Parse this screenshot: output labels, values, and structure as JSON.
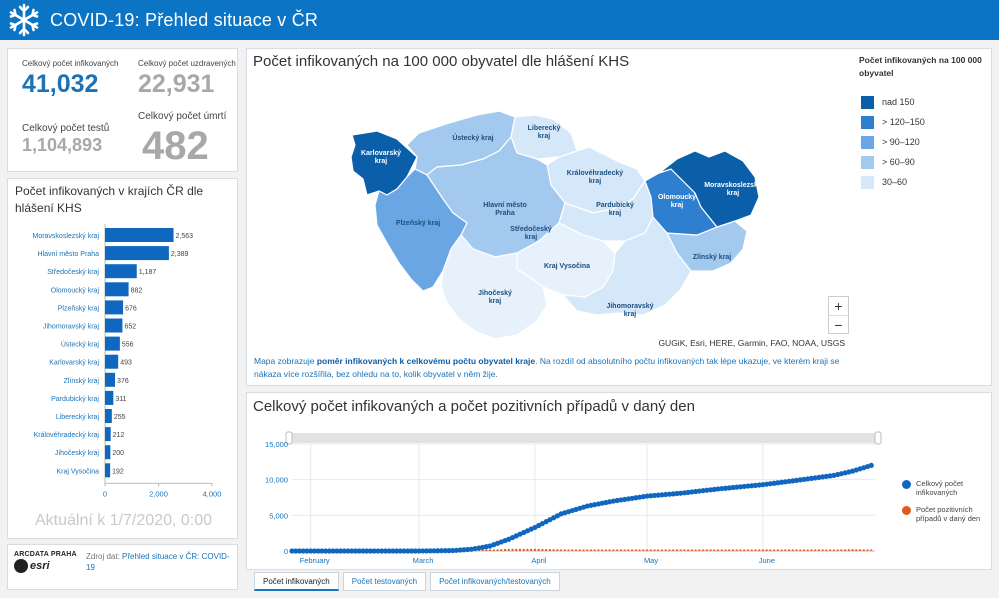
{
  "header": {
    "title": "COVID-19: Přehled situace v ČR"
  },
  "stats": [
    {
      "label": "Celkový počet infikovaných",
      "value": "41,032"
    },
    {
      "label": "Celkový počet uzdravených",
      "value": "22,931"
    },
    {
      "label": "Celkový počet testů",
      "value": "1,104,893"
    },
    {
      "label": "Celkový počet úmrtí",
      "value": "482"
    }
  ],
  "bar_panel": {
    "title": "Počet infikovaných v krajích ČR dle hlášení KHS",
    "updated": "Aktuální k 1/7/2020, 0:00"
  },
  "source": {
    "logo_text": "ARCDATA PRAHA",
    "logo_word": "esri",
    "prefix": "Zdroj dat: ",
    "link": "Přehled situace v ČR: COVID-19"
  },
  "map_panel": {
    "title": "Počet infikovaných na 100 000 obyvatel dle hlášení KHS",
    "legend_title": "Počet infikovaných na 100 000 obyvatel",
    "legend": [
      {
        "label": "nad 150",
        "color": "#0b5ea8"
      },
      {
        "label": "> 120–150",
        "color": "#2f7fd0"
      },
      {
        "label": "> 90–120",
        "color": "#6aa6e3"
      },
      {
        "label": "> 60–90",
        "color": "#a3c9ef"
      },
      {
        "label": "30–60",
        "color": "#d5e8f9"
      }
    ],
    "zoom_in": "+",
    "zoom_out": "−",
    "attribution": "GUGiK, Esri, HERE, Garmin, FAO, NOAA, USGS",
    "description": {
      "part1": "Mapa zobrazuje ",
      "bold": "poměr infikovaných k celkovému počtu obyvatel kraje",
      "part2": ". Na rozdíl od absolutního počtu infikovaných tak lépe ukazuje, ve kterém kraji se nákaza více rozšířila, bez ohledu na to, kolik obyvatel v něm žije."
    },
    "regions": [
      {
        "name": "Karlovarský kraj",
        "short": "Karlovarský\nkraj",
        "color": "#0b5ea8",
        "label_color": "#ffffff"
      },
      {
        "name": "Ústecký kraj",
        "short": "Ústecký kraj",
        "color": "#a3c9ef",
        "label_color": "#1d4f7e"
      },
      {
        "name": "Liberecký kraj",
        "short": "Liberecký\nkraj",
        "color": "#d5e8f9",
        "label_color": "#1d4f7e"
      },
      {
        "name": "Královéhradecký kraj",
        "short": "Královéhradecký\nkraj",
        "color": "#d5e8f9",
        "label_color": "#1d4f7e"
      },
      {
        "name": "Hlavní město Praha",
        "short": "Hlavní město\nPraha",
        "color": "#0b5ea8",
        "label_color": "#1d4f7e"
      },
      {
        "name": "Středočeský kraj",
        "short": "Středočeský\nkraj",
        "color": "#a3c9ef",
        "label_color": "#1d4f7e"
      },
      {
        "name": "Pardubický kraj",
        "short": "Pardubický\nkraj",
        "color": "#d5e8f9",
        "label_color": "#1d4f7e"
      },
      {
        "name": "Plzeňský kraj",
        "short": "Plzeňský kraj",
        "color": "#6aa6e3",
        "label_color": "#1d4f7e"
      },
      {
        "name": "Kraj Vysočina",
        "short": "Kraj Vysočina",
        "color": "#e7f1fb",
        "label_color": "#1d4f7e"
      },
      {
        "name": "Jihočeský kraj",
        "short": "Jihočeský\nkraj",
        "color": "#e7f1fb",
        "label_color": "#1d4f7e"
      },
      {
        "name": "Jihomoravský kraj",
        "short": "Jihomoravský\nkraj",
        "color": "#d5e8f9",
        "label_color": "#1d4f7e"
      },
      {
        "name": "Zlínský kraj",
        "short": "Zlínský kraj",
        "color": "#a3c9ef",
        "label_color": "#1d4f7e"
      },
      {
        "name": "Olomoucký kraj",
        "short": "Olomoucký\nkraj",
        "color": "#2f7fd0",
        "label_color": "#ffffff"
      },
      {
        "name": "Moravskoslezský kraj",
        "short": "Moravskoslezský\nkraj",
        "color": "#0b5ea8",
        "label_color": "#ffffff"
      }
    ]
  },
  "line_panel": {
    "title": "Celkový počet infikovaných a počet pozitivních případů v daný den",
    "legend": [
      {
        "label": "Celkový počet infikovaných",
        "color": "#1067c0"
      },
      {
        "label": "Počet pozitivních případů v daný den",
        "color": "#e05a1f"
      }
    ]
  },
  "tabs": [
    {
      "label": "Počet infikovaných",
      "active": true
    },
    {
      "label": "Počet testovaných",
      "active": false
    },
    {
      "label": "Počet infikovaných/testovaných",
      "active": false
    }
  ],
  "chart_data": [
    {
      "type": "bar",
      "orientation": "horizontal",
      "title": "Počet infikovaných v krajích ČR dle hlášení KHS",
      "categories": [
        "Moravskoslezský kraj",
        "Hlavní město Praha",
        "Středočeský kraj",
        "Olomoucký kraj",
        "Plzeňský kraj",
        "Jihomoravský kraj",
        "Ústecký kraj",
        "Karlovarský kraj",
        "Zlínský kraj",
        "Pardubický kraj",
        "Liberecký kraj",
        "Královéhradecký kraj",
        "Jihočeský kraj",
        "Kraj Vysočina"
      ],
      "values": [
        2563,
        2389,
        1187,
        882,
        676,
        652,
        556,
        493,
        376,
        311,
        255,
        212,
        200,
        192
      ],
      "data_labels": [
        "2,563",
        "2,389",
        "1,187",
        "882",
        "676",
        "652",
        "556",
        "493",
        "376",
        "311",
        "255",
        "212",
        "200",
        "192"
      ],
      "xlim": [
        0,
        4000
      ],
      "xticks": [
        0,
        2000,
        4000
      ],
      "xtick_labels": [
        "0",
        "2,000",
        "4,000"
      ],
      "color": "#1067c0"
    },
    {
      "type": "line",
      "title": "Celkový počet infikovaných a počet pozitivních případů v daný den",
      "x_ticks": [
        "February",
        "March",
        "April",
        "May",
        "June"
      ],
      "y_ticks": [
        "0",
        "5,000",
        "10,000",
        "15,000"
      ],
      "ylim": [
        0,
        15000
      ],
      "x_range": [
        "2020-01-27",
        "2020-07-01"
      ],
      "x_tick_dates": [
        "2020-02-01",
        "2020-03-01",
        "2020-04-01",
        "2020-05-01",
        "2020-06-01"
      ],
      "series": [
        {
          "name": "Celkový počet infikovaných",
          "marker": "circle",
          "x": [
            "2020-01-27",
            "2020-02-15",
            "2020-03-01",
            "2020-03-10",
            "2020-03-15",
            "2020-03-20",
            "2020-03-25",
            "2020-04-01",
            "2020-04-08",
            "2020-04-15",
            "2020-04-22",
            "2020-05-01",
            "2020-05-10",
            "2020-05-20",
            "2020-06-01",
            "2020-06-10",
            "2020-06-20",
            "2020-06-25",
            "2020-06-30"
          ],
          "values": [
            0,
            0,
            3,
            60,
            250,
            700,
            1650,
            3300,
            5200,
            6300,
            7000,
            7700,
            8100,
            8700,
            9300,
            9900,
            10600,
            11200,
            12000
          ]
        },
        {
          "name": "Počet pozitivních případů v daný den",
          "marker": "square",
          "x": [
            "2020-01-27",
            "2020-03-01",
            "2020-03-15",
            "2020-03-25",
            "2020-04-01",
            "2020-04-15",
            "2020-05-01",
            "2020-05-15",
            "2020-06-01",
            "2020-06-15",
            "2020-06-25",
            "2020-06-30"
          ],
          "values": [
            0,
            3,
            60,
            300,
            300,
            150,
            60,
            50,
            80,
            100,
            250,
            200
          ]
        }
      ]
    }
  ]
}
